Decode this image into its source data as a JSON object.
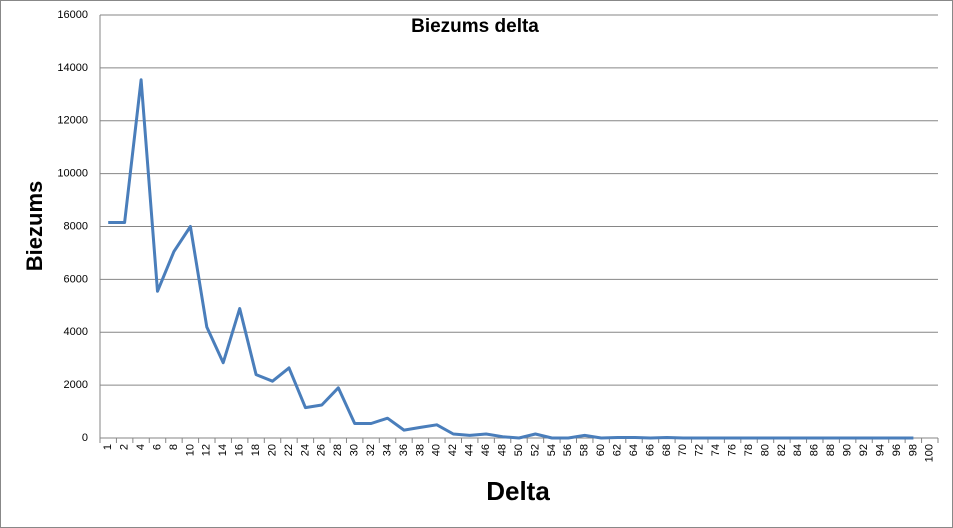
{
  "chart_data": {
    "type": "line",
    "title": "Biezums delta",
    "x_label": "Delta",
    "y_label": "Biezums",
    "categories": [
      1,
      2,
      4,
      6,
      8,
      10,
      12,
      14,
      16,
      18,
      20,
      22,
      24,
      26,
      28,
      30,
      32,
      34,
      36,
      38,
      40,
      42,
      44,
      46,
      48,
      50,
      52,
      54,
      56,
      58,
      60,
      62,
      64,
      66,
      68,
      70,
      72,
      74,
      76,
      78,
      80,
      82,
      84,
      86,
      88,
      90,
      92,
      94,
      96,
      98,
      100
    ],
    "values": [
      8150,
      8150,
      13550,
      5550,
      7050,
      8000,
      4200,
      2850,
      4900,
      2400,
      2150,
      2650,
      1150,
      1250,
      1900,
      550,
      550,
      750,
      300,
      400,
      500,
      150,
      100,
      150,
      50,
      0,
      150,
      0,
      0,
      100,
      0,
      20,
      20,
      0,
      20,
      0,
      0,
      0,
      0,
      0,
      0,
      0,
      0,
      0,
      0,
      0,
      0,
      0,
      0,
      0,
      null
    ],
    "color": "#4a7ebb",
    "ylim": [
      0,
      16000
    ],
    "yticks": [
      0,
      2000,
      4000,
      6000,
      8000,
      10000,
      12000,
      14000,
      16000
    ],
    "grid": true
  }
}
